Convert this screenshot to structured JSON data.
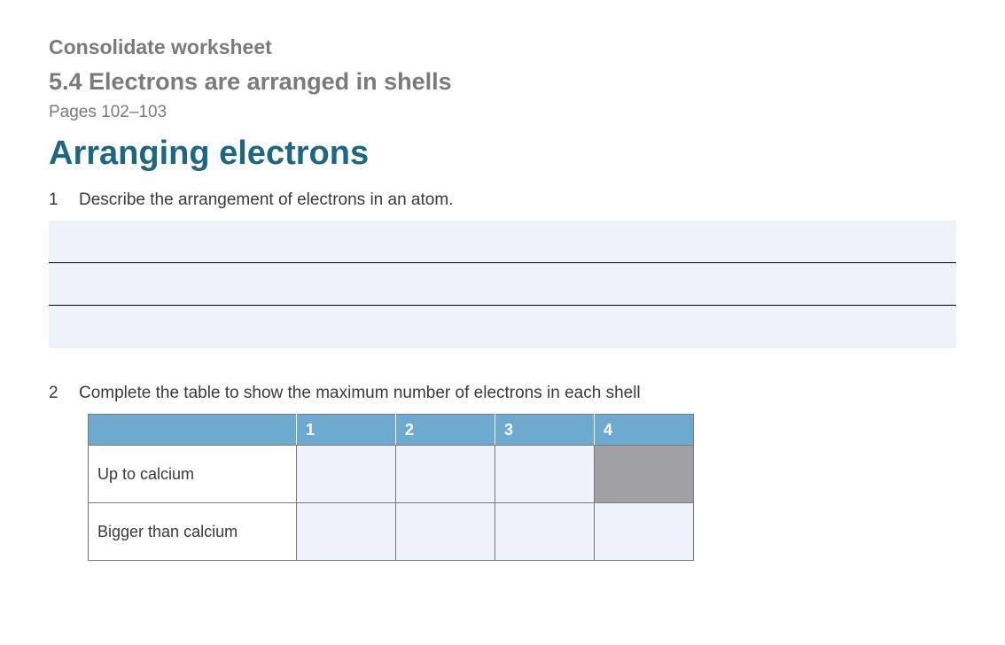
{
  "header": {
    "pretitle": "Consolidate worksheet",
    "chapter": "5.4 Electrons are arranged in shells",
    "pages": "Pages 102–103",
    "title": "Arranging electrons"
  },
  "questions": {
    "q1": {
      "number": "1",
      "text": "Describe the arrangement of electrons in an atom.",
      "answer_lines": 3
    },
    "q2": {
      "number": "2",
      "text": "Complete the table to show the maximum number of electrons in each shell",
      "table": {
        "column_headers": [
          "1",
          "2",
          "3",
          "4"
        ],
        "rows": [
          {
            "label": "Up to calcium",
            "cells": [
              "",
              "",
              "",
              ""
            ],
            "blocked_index": 3
          },
          {
            "label": "Bigger than calcium",
            "cells": [
              "",
              "",
              "",
              ""
            ],
            "blocked_index": -1
          }
        ]
      }
    }
  },
  "colors": {
    "header_gray": "#7b7b7b",
    "title_teal": "#1d6780",
    "answer_bg": "#eff2fa",
    "table_header_bg": "#6ea9d0",
    "table_border": "#7a7a7a",
    "blocked_cell": "#a1a1a3",
    "page_bg": "#ffffff"
  }
}
